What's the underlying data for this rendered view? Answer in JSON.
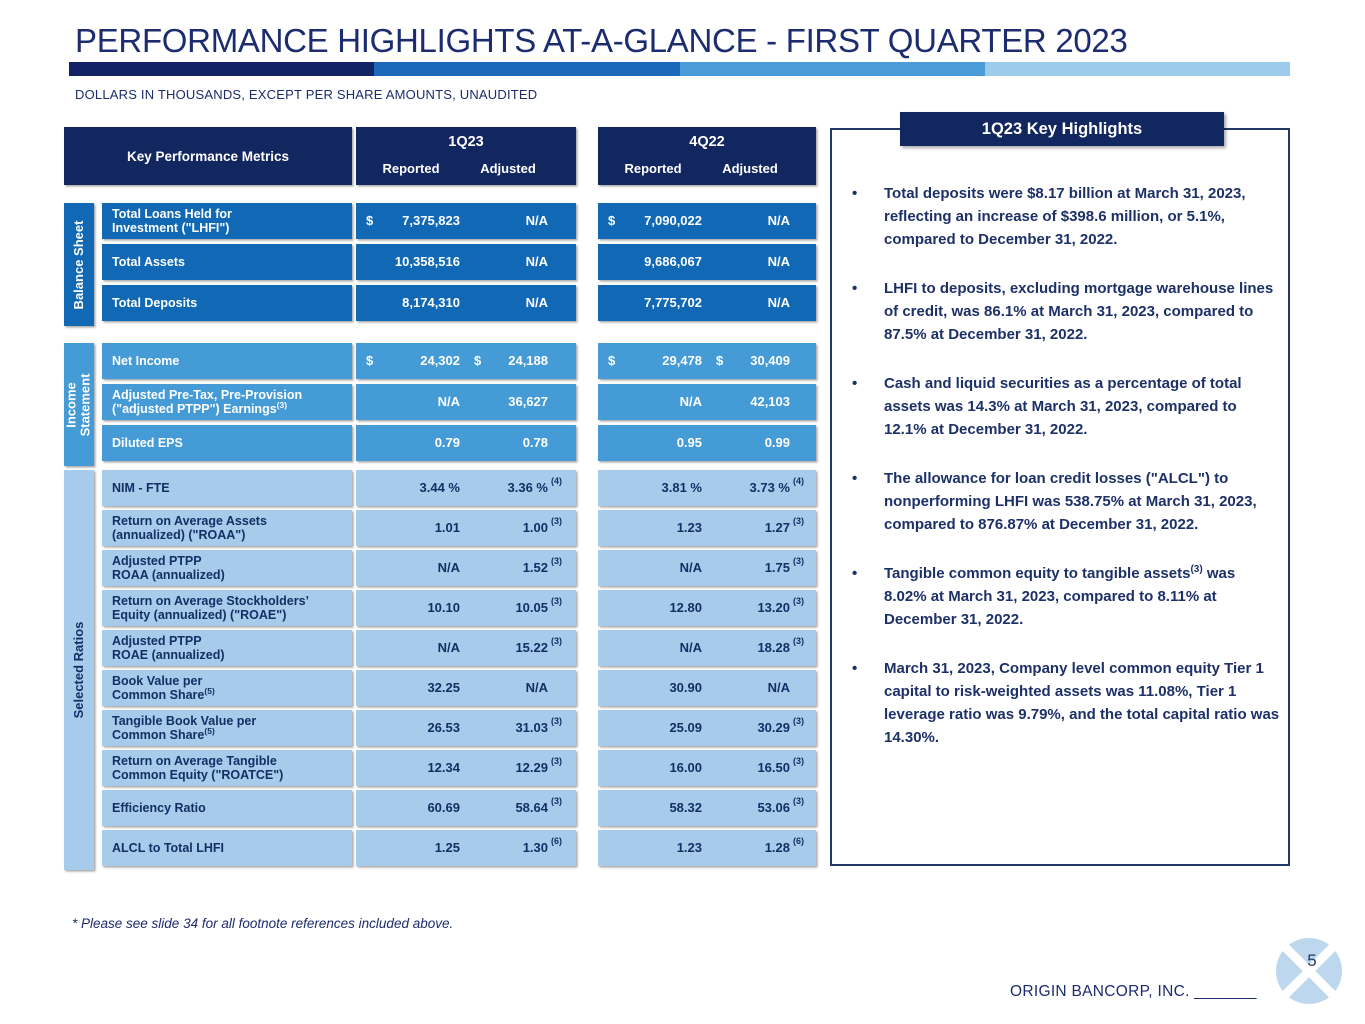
{
  "slide": {
    "title": "PERFORMANCE HIGHLIGHTS AT-A-GLANCE - FIRST QUARTER 2023",
    "subtitle": "DOLLARS IN THOUSANDS, EXCEPT PER SHARE AMOUNTS, UNAUDITED",
    "footnote": "* Please see slide 34 for all footnote references included above.",
    "company": "ORIGIN BANCORP, INC.",
    "company_rule": "_______",
    "page_number": "5"
  },
  "colors": {
    "title_text": "#1C2C6E",
    "navy_header": "#122660",
    "balance_sheet_blue": "#1168B4",
    "income_statement_blue": "#459BD6",
    "selected_ratios_blue": "#A7CBEA",
    "pale_row_text": "#132F66",
    "panel_border": "#1F3864",
    "logo_blue": "#BDD7EE",
    "accent_bar": [
      "#122465",
      "#1B69B8",
      "#4A9CD9",
      "#9DCBEC"
    ]
  },
  "table": {
    "metrics_header": "Key Performance Metrics",
    "groups": [
      {
        "period": "1Q23",
        "reported_label": "Reported",
        "adjusted_label": "Adjusted"
      },
      {
        "period": "4Q22",
        "reported_label": "Reported",
        "adjusted_label": "Adjusted"
      }
    ],
    "sections": [
      {
        "label_lines": [
          "Balance Sheet"
        ],
        "theme": "medium",
        "rows": [
          {
            "label_lines": [
              "Total Loans Held for",
              "Investment (\"LHFI\")"
            ],
            "cells": [
              {
                "cur_r": "$",
                "reported": "7,375,823",
                "cur_a": "",
                "adjusted": "N/A",
                "sup": ""
              },
              {
                "cur_r": "$",
                "reported": "7,090,022",
                "cur_a": "",
                "adjusted": "N/A",
                "sup": ""
              }
            ]
          },
          {
            "label_lines": [
              "Total Assets"
            ],
            "cells": [
              {
                "cur_r": "",
                "reported": "10,358,516",
                "cur_a": "",
                "adjusted": "N/A",
                "sup": ""
              },
              {
                "cur_r": "",
                "reported": "9,686,067",
                "cur_a": "",
                "adjusted": "N/A",
                "sup": ""
              }
            ]
          },
          {
            "label_lines": [
              "Total Deposits"
            ],
            "cells": [
              {
                "cur_r": "",
                "reported": "8,174,310",
                "cur_a": "",
                "adjusted": "N/A",
                "sup": ""
              },
              {
                "cur_r": "",
                "reported": "7,775,702",
                "cur_a": "",
                "adjusted": "N/A",
                "sup": ""
              }
            ]
          }
        ]
      },
      {
        "label_lines": [
          "Income",
          "Statement"
        ],
        "theme": "light",
        "rows": [
          {
            "label_lines": [
              "Net Income"
            ],
            "cells": [
              {
                "cur_r": "$",
                "reported": "24,302",
                "cur_a": "$",
                "adjusted": "24,188",
                "sup": ""
              },
              {
                "cur_r": "$",
                "reported": "29,478",
                "cur_a": "$",
                "adjusted": "30,409",
                "sup": ""
              }
            ]
          },
          {
            "label_lines": [
              "Adjusted Pre-Tax, Pre-Provision",
              "(\"adjusted PTPP\") Earnings"
            ],
            "label_sup": "(3)",
            "cells": [
              {
                "cur_r": "",
                "reported": "N/A",
                "cur_a": "",
                "adjusted": "36,627",
                "sup": ""
              },
              {
                "cur_r": "",
                "reported": "N/A",
                "cur_a": "",
                "adjusted": "42,103",
                "sup": ""
              }
            ]
          },
          {
            "label_lines": [
              "Diluted EPS"
            ],
            "cells": [
              {
                "cur_r": "",
                "reported": "0.79",
                "cur_a": "",
                "adjusted": "0.78",
                "sup": ""
              },
              {
                "cur_r": "",
                "reported": "0.95",
                "cur_a": "",
                "adjusted": "0.99",
                "sup": ""
              }
            ]
          }
        ]
      },
      {
        "label_lines": [
          "Selected Ratios"
        ],
        "theme": "pale",
        "rows": [
          {
            "label_lines": [
              "NIM - FTE"
            ],
            "cells": [
              {
                "cur_r": "",
                "reported": "3.44 %",
                "cur_a": "",
                "adjusted": "3.36 %",
                "sup": "(4)"
              },
              {
                "cur_r": "",
                "reported": "3.81 %",
                "cur_a": "",
                "adjusted": "3.73 %",
                "sup": "(4)"
              }
            ]
          },
          {
            "label_lines": [
              "Return on Average Assets",
              "(annualized) (\"ROAA\")"
            ],
            "cells": [
              {
                "cur_r": "",
                "reported": "1.01",
                "cur_a": "",
                "adjusted": "1.00",
                "sup": "(3)"
              },
              {
                "cur_r": "",
                "reported": "1.23",
                "cur_a": "",
                "adjusted": "1.27",
                "sup": "(3)"
              }
            ]
          },
          {
            "label_lines": [
              "Adjusted PTPP",
              "ROAA (annualized)"
            ],
            "cells": [
              {
                "cur_r": "",
                "reported": "N/A",
                "cur_a": "",
                "adjusted": "1.52",
                "sup": "(3)"
              },
              {
                "cur_r": "",
                "reported": "N/A",
                "cur_a": "",
                "adjusted": "1.75",
                "sup": "(3)"
              }
            ]
          },
          {
            "label_lines": [
              "Return on Average Stockholders’",
              "Equity (annualized) (\"ROAE\")"
            ],
            "cells": [
              {
                "cur_r": "",
                "reported": "10.10",
                "cur_a": "",
                "adjusted": "10.05",
                "sup": "(3)"
              },
              {
                "cur_r": "",
                "reported": "12.80",
                "cur_a": "",
                "adjusted": "13.20",
                "sup": "(3)"
              }
            ]
          },
          {
            "label_lines": [
              "Adjusted PTPP",
              "ROAE (annualized)"
            ],
            "cells": [
              {
                "cur_r": "",
                "reported": "N/A",
                "cur_a": "",
                "adjusted": "15.22",
                "sup": "(3)"
              },
              {
                "cur_r": "",
                "reported": "N/A",
                "cur_a": "",
                "adjusted": "18.28",
                "sup": "(3)"
              }
            ]
          },
          {
            "label_lines": [
              "Book Value per",
              "Common Share"
            ],
            "label_sup": "(5)",
            "cells": [
              {
                "cur_r": "",
                "reported": "32.25",
                "cur_a": "",
                "adjusted": "N/A",
                "sup": ""
              },
              {
                "cur_r": "",
                "reported": "30.90",
                "cur_a": "",
                "adjusted": "N/A",
                "sup": ""
              }
            ]
          },
          {
            "label_lines": [
              "Tangible Book Value per",
              "Common Share"
            ],
            "label_sup": "(5)",
            "cells": [
              {
                "cur_r": "",
                "reported": "26.53",
                "cur_a": "",
                "adjusted": "31.03",
                "sup": "(3)"
              },
              {
                "cur_r": "",
                "reported": "25.09",
                "cur_a": "",
                "adjusted": "30.29",
                "sup": "(3)"
              }
            ]
          },
          {
            "label_lines": [
              "Return on Average Tangible",
              "Common Equity (\"ROATCE\")"
            ],
            "cells": [
              {
                "cur_r": "",
                "reported": "12.34",
                "cur_a": "",
                "adjusted": "12.29",
                "sup": "(3)"
              },
              {
                "cur_r": "",
                "reported": "16.00",
                "cur_a": "",
                "adjusted": "16.50",
                "sup": "(3)"
              }
            ]
          },
          {
            "label_lines": [
              "Efficiency Ratio"
            ],
            "cells": [
              {
                "cur_r": "",
                "reported": "60.69",
                "cur_a": "",
                "adjusted": "58.64",
                "sup": "(3)"
              },
              {
                "cur_r": "",
                "reported": "58.32",
                "cur_a": "",
                "adjusted": "53.06",
                "sup": "(3)"
              }
            ]
          },
          {
            "label_lines": [
              "ALCL to Total LHFI"
            ],
            "cells": [
              {
                "cur_r": "",
                "reported": "1.25",
                "cur_a": "",
                "adjusted": "1.30",
                "sup": "(6)"
              },
              {
                "cur_r": "",
                "reported": "1.23",
                "cur_a": "",
                "adjusted": "1.28",
                "sup": "(6)"
              }
            ]
          }
        ]
      }
    ]
  },
  "highlights": {
    "title": "1Q23 Key Highlights",
    "bullet_char": "•",
    "bullets": [
      {
        "segments": [
          {
            "text": "Total deposits were $8.17 billion at March 31, 2023, reflecting an increase of $398.6 million, or 5.1%, compared to December 31, 2022."
          }
        ]
      },
      {
        "segments": [
          {
            "text": "LHFI to deposits, excluding mortgage warehouse lines of credit, was 86.1% at March 31, 2023, compared to 87.5% at December 31, 2022."
          }
        ]
      },
      {
        "segments": [
          {
            "text": "Cash and liquid securities as a percentage of total assets was 14.3% at March 31, 2023, compared to 12.1% at December 31, 2022."
          }
        ]
      },
      {
        "segments": [
          {
            "text": "The allowance for loan credit losses (\"ALCL\") to nonperforming LHFI was 538.75% at March 31, 2023, compared to 876.87% at December 31, 2022."
          }
        ]
      },
      {
        "segments": [
          {
            "text": "Tangible common equity to tangible assets"
          },
          {
            "sup": "(3)"
          },
          {
            "text": " was 8.02% at March 31, 2023, compared to 8.11% at December 31, 2022."
          }
        ]
      },
      {
        "segments": [
          {
            "text": "March 31, 2023, Company level common equity Tier 1 capital to risk-weighted assets was 11.08%, Tier 1 leverage ratio was 9.79%, and the total capital ratio was 14.30%."
          }
        ]
      }
    ]
  }
}
